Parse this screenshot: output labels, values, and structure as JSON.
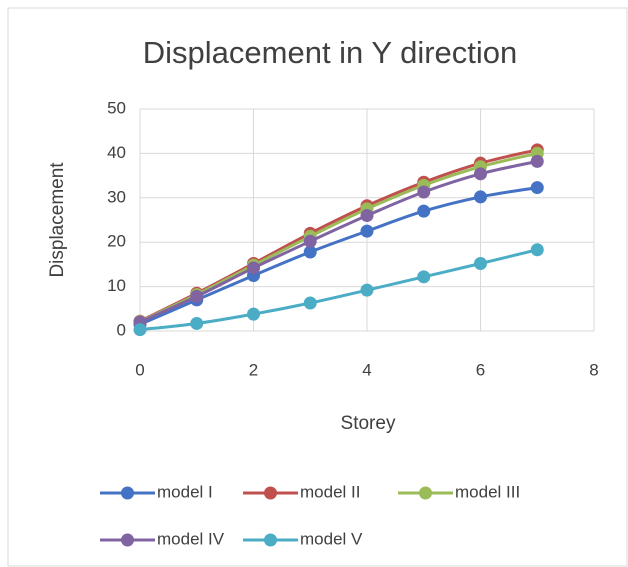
{
  "chart_data": {
    "type": "line",
    "title": "Displacement in Y direction",
    "xlabel": "Storey",
    "ylabel": "Displacement",
    "x": [
      0,
      1,
      2,
      3,
      4,
      5,
      6,
      7
    ],
    "xlim": [
      0,
      8
    ],
    "xticks": [
      0,
      2,
      4,
      6,
      8
    ],
    "ylim": [
      0,
      50
    ],
    "yticks": [
      0,
      10,
      20,
      30,
      40,
      50
    ],
    "grid": true,
    "legend": "bottom",
    "series": [
      {
        "name": "model I",
        "color": "#4472c4",
        "values": [
          1.5,
          7,
          12.5,
          17.8,
          22.5,
          27,
          30.2,
          32.3
        ]
      },
      {
        "name": "model II",
        "color": "#c0504d",
        "values": [
          2.2,
          8.5,
          15.2,
          22,
          28.2,
          33.5,
          37.8,
          40.8
        ]
      },
      {
        "name": "model III",
        "color": "#9bbb59",
        "values": [
          2.1,
          8.2,
          14.8,
          21.3,
          27.5,
          32.8,
          37,
          40
        ]
      },
      {
        "name": "model IV",
        "color": "#8064a2",
        "values": [
          2,
          7.8,
          14.2,
          20.2,
          26,
          31.3,
          35.4,
          38.2
        ]
      },
      {
        "name": "model V",
        "color": "#4bacc6",
        "values": [
          0.3,
          1.7,
          3.8,
          6.3,
          9.2,
          12.2,
          15.2,
          18.3
        ]
      }
    ]
  }
}
